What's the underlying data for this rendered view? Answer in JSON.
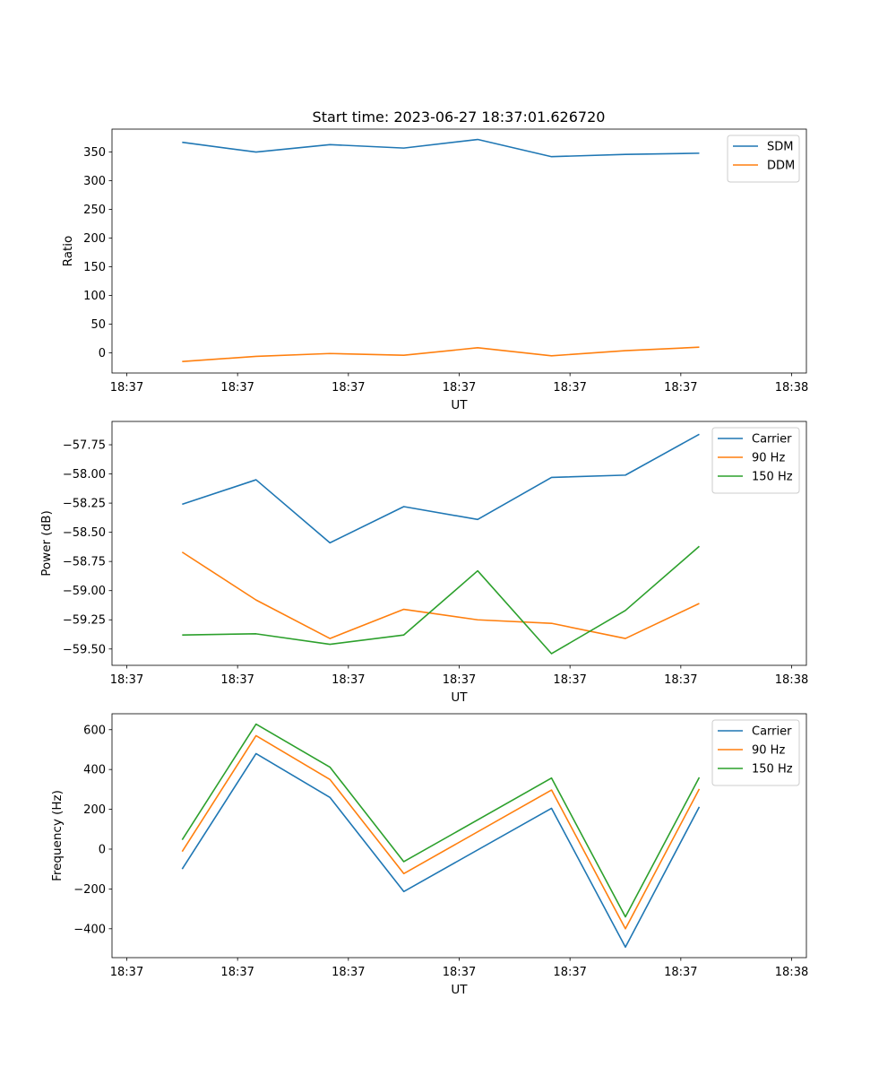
{
  "title": "Start time: 2023-06-27 18:37:01.626720",
  "chart_data": [
    {
      "type": "line",
      "xlabel": "UT",
      "ylabel": "Ratio",
      "ylim": [
        -35,
        390
      ],
      "yticks": [
        0,
        50,
        100,
        150,
        200,
        250,
        300,
        350
      ],
      "xlim": [
        -0.2,
        9.2
      ],
      "xticks": [
        0,
        1.5,
        3,
        4.5,
        6,
        7.5,
        9
      ],
      "xtick_labels": [
        "18:37",
        "18:37",
        "18:37",
        "18:37",
        "18:37",
        "18:37",
        "18:38"
      ],
      "x": [
        0.75,
        1.75,
        2.75,
        3.75,
        4.75,
        5.75,
        6.75,
        7.75
      ],
      "legend_loc": "upper right",
      "series": [
        {
          "name": "SDM",
          "color": "#1f77b4",
          "values": [
            367,
            350,
            363,
            357,
            372,
            342,
            346,
            348
          ]
        },
        {
          "name": "DDM",
          "color": "#ff7f0e",
          "values": [
            -15,
            -6,
            -1,
            -4,
            9,
            -5,
            4,
            10
          ]
        }
      ]
    },
    {
      "type": "line",
      "xlabel": "UT",
      "ylabel": "Power (dB)",
      "ylim": [
        -59.64,
        -57.55
      ],
      "yticks": [
        -59.5,
        -59.25,
        -59.0,
        -58.75,
        -58.5,
        -58.25,
        -58.0,
        -57.75
      ],
      "ytick_labels": [
        "−59.50",
        "−59.25",
        "−59.00",
        "−58.75",
        "−58.50",
        "−58.25",
        "−58.00",
        "−57.75"
      ],
      "xlim": [
        -0.2,
        9.2
      ],
      "xticks": [
        0,
        1.5,
        3,
        4.5,
        6,
        7.5,
        9
      ],
      "xtick_labels": [
        "18:37",
        "18:37",
        "18:37",
        "18:37",
        "18:37",
        "18:37",
        "18:38"
      ],
      "x": [
        0.75,
        1.75,
        2.75,
        3.75,
        4.75,
        5.75,
        6.75,
        7.75
      ],
      "legend_loc": "upper right",
      "series": [
        {
          "name": "Carrier",
          "color": "#1f77b4",
          "values": [
            -58.26,
            -58.05,
            -58.59,
            -58.28,
            -58.39,
            -58.03,
            -58.01,
            -57.66
          ]
        },
        {
          "name": "90 Hz",
          "color": "#ff7f0e",
          "values": [
            -58.67,
            -59.08,
            -59.41,
            -59.16,
            -59.25,
            -59.28,
            -59.41,
            -59.11
          ]
        },
        {
          "name": "150 Hz",
          "color": "#2ca02c",
          "values": [
            -59.38,
            -59.37,
            -59.46,
            -59.38,
            -58.83,
            -59.54,
            -59.17,
            -58.62
          ]
        }
      ]
    },
    {
      "type": "line",
      "xlabel": "UT",
      "ylabel": "Frequency (Hz)",
      "ylim": [
        -545,
        680
      ],
      "yticks": [
        -400,
        -200,
        0,
        200,
        400,
        600
      ],
      "ytick_labels": [
        "−400",
        "−200",
        "0",
        "200",
        "400",
        "600"
      ],
      "xlim": [
        -0.2,
        9.2
      ],
      "xticks": [
        0,
        1.5,
        3,
        4.5,
        6,
        7.5,
        9
      ],
      "xtick_labels": [
        "18:37",
        "18:37",
        "18:37",
        "18:37",
        "18:37",
        "18:37",
        "18:38"
      ],
      "x": [
        0.75,
        1.75,
        2.75,
        3.75,
        5.75,
        6.75,
        7.75
      ],
      "legend_loc": "upper right",
      "series": [
        {
          "name": "Carrier",
          "color": "#1f77b4",
          "values": [
            -100,
            480,
            260,
            -213,
            205,
            -492,
            212
          ]
        },
        {
          "name": "90 Hz",
          "color": "#ff7f0e",
          "values": [
            -12,
            570,
            350,
            -123,
            297,
            -400,
            302
          ]
        },
        {
          "name": "150 Hz",
          "color": "#2ca02c",
          "values": [
            47,
            628,
            412,
            -63,
            357,
            -340,
            360
          ]
        }
      ]
    }
  ]
}
